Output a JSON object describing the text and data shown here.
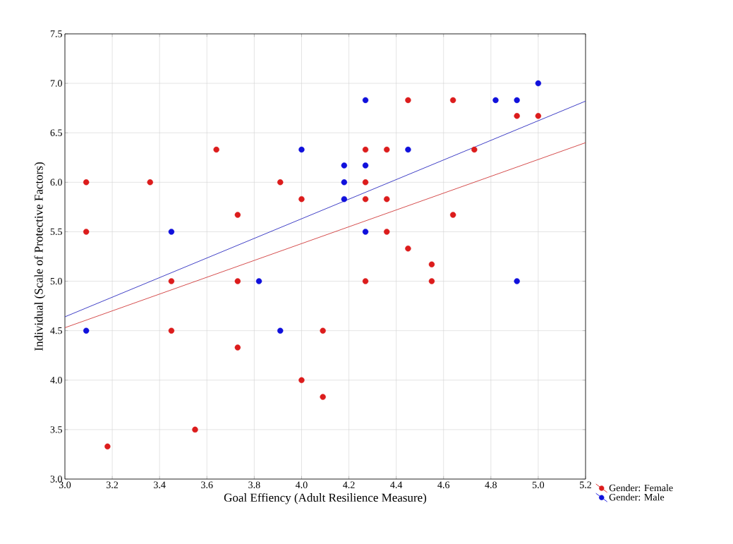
{
  "chart_data": {
    "type": "scatter",
    "xlabel": "Goal Effiency (Adult Resilience Measure)",
    "ylabel": "Individual (Scale of Protective Factors)",
    "xlim": [
      3.0,
      5.2
    ],
    "ylim": [
      3.0,
      7.5
    ],
    "xticks": [
      {
        "value": 3.0,
        "label": "3.0"
      },
      {
        "value": 3.2,
        "label": "3.2"
      },
      {
        "value": 3.4,
        "label": "3.4"
      },
      {
        "value": 3.6,
        "label": "3.6"
      },
      {
        "value": 3.8,
        "label": "3.8"
      },
      {
        "value": 4.0,
        "label": "4.0"
      },
      {
        "value": 4.2,
        "label": "4.2"
      },
      {
        "value": 4.4,
        "label": "4.4"
      },
      {
        "value": 4.6,
        "label": "4.6"
      },
      {
        "value": 4.8,
        "label": "4.8"
      },
      {
        "value": 5.0,
        "label": "5.0"
      },
      {
        "value": 5.2,
        "label": "5.2"
      }
    ],
    "yticks": [
      {
        "value": 3.0,
        "label": "3.0"
      },
      {
        "value": 3.5,
        "label": "3.5"
      },
      {
        "value": 4.0,
        "label": "4.0"
      },
      {
        "value": 4.5,
        "label": "4.5"
      },
      {
        "value": 5.0,
        "label": "5.0"
      },
      {
        "value": 5.5,
        "label": "5.5"
      },
      {
        "value": 6.0,
        "label": "6.0"
      },
      {
        "value": 6.5,
        "label": "6.5"
      },
      {
        "value": 7.0,
        "label": "7.0"
      },
      {
        "value": 7.5,
        "label": "7.5"
      }
    ],
    "grid": true,
    "legend": "bottom right",
    "series": [
      {
        "name": "Gender: Female",
        "color": "#dc1c1c",
        "marker": "circle",
        "x": [
          3.09,
          3.09,
          3.36,
          3.64,
          3.91,
          4.0,
          3.73,
          3.45,
          3.73,
          3.45,
          3.73,
          4.0,
          4.09,
          4.09,
          3.55,
          3.18,
          4.45,
          4.64,
          4.91,
          5.0,
          4.27,
          4.36,
          4.73,
          4.27,
          4.27,
          4.36,
          4.64,
          4.36,
          4.45,
          4.55,
          4.55,
          4.27
        ],
        "values": [
          6.0,
          5.5,
          6.0,
          6.33,
          6.0,
          5.83,
          5.67,
          5.0,
          5.0,
          4.5,
          4.33,
          4.0,
          4.5,
          3.83,
          3.5,
          3.33,
          6.83,
          6.83,
          6.67,
          6.67,
          6.33,
          6.33,
          6.33,
          6.0,
          5.83,
          5.83,
          5.67,
          5.5,
          5.33,
          5.17,
          5.0,
          5.0
        ]
      },
      {
        "name": "Gender: Male",
        "color": "#1010dc",
        "marker": "circle",
        "x": [
          4.0,
          3.45,
          3.82,
          3.09,
          3.91,
          4.27,
          4.82,
          4.91,
          5.0,
          4.45,
          4.18,
          4.27,
          4.18,
          4.18,
          4.27,
          4.91
        ],
        "values": [
          6.33,
          5.5,
          5.0,
          4.5,
          4.5,
          6.83,
          6.83,
          6.83,
          7.0,
          6.33,
          6.17,
          6.17,
          6.0,
          5.83,
          5.5,
          5.0
        ]
      },
      {
        "type": "line",
        "color": "#d03a3a",
        "line_style": "solid",
        "marker": "none",
        "x": [
          3.0,
          5.2
        ],
        "values": [
          4.53,
          6.4
        ]
      },
      {
        "type": "line",
        "color": "#2a2ac0",
        "line_style": "solid",
        "marker": "none",
        "x": [
          3.0,
          5.2
        ],
        "values": [
          4.64,
          6.82
        ]
      }
    ]
  }
}
